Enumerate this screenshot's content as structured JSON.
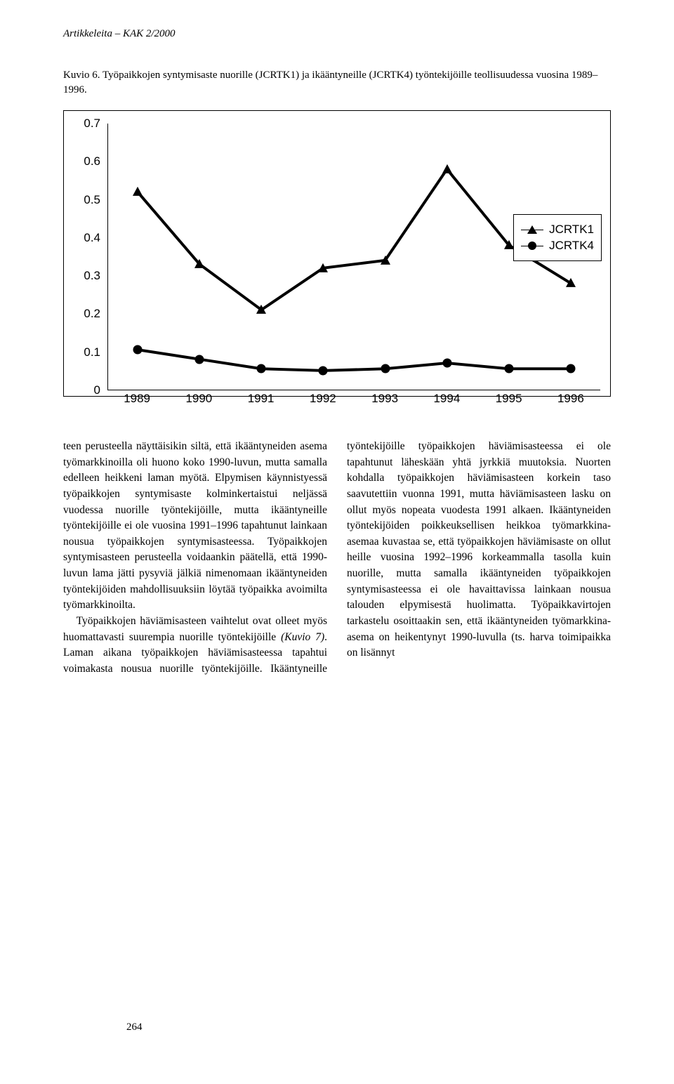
{
  "running_head": "Artikkeleita – KAK 2/2000",
  "caption": "Kuvio 6. Työpaikkojen syntymisaste nuorille (JCRTK1) ja ikääntyneille (JCRTK4) työntekijöille teollisuudessa vuosina 1989–1996.",
  "chart": {
    "type": "line",
    "background_color": "#ffffff",
    "axis_color": "#000000",
    "xlabels": [
      "1989",
      "1990",
      "1991",
      "1992",
      "1993",
      "1994",
      "1995",
      "1996"
    ],
    "ylim": [
      0,
      0.7
    ],
    "yticks": [
      "0",
      "0.1",
      "0.2",
      "0.3",
      "0.4",
      "0.5",
      "0.6",
      "0.7"
    ],
    "label_fontsize": 17,
    "series": [
      {
        "name": "JCRTK1",
        "marker": "triangle",
        "color": "#000000",
        "line_width": 1.5,
        "values": [
          0.52,
          0.33,
          0.21,
          0.32,
          0.34,
          0.58,
          0.38,
          0.28
        ]
      },
      {
        "name": "JCRTK4",
        "marker": "circle",
        "color": "#000000",
        "line_width": 1.5,
        "values": [
          0.105,
          0.08,
          0.055,
          0.05,
          0.055,
          0.07,
          0.055,
          0.055
        ]
      }
    ]
  },
  "col_a_p1": "teen perusteella näyttäisikin siltä, että ikääntyneiden asema työmarkkinoilla oli huono koko 1990-luvun, mutta samalla edelleen heikkeni laman myötä. Elpymisen käynnistyessä työpaikkojen syntymisaste kolminkertaistui neljässä vuodessa nuorille työntekijöille, mutta ikääntyneille työntekijöille ei ole vuosina 1991–1996 tapahtunut lainkaan nousua työpaikkojen syntymisasteessa. Työpaikkojen syntymisasteen perusteella voidaankin päätellä, että 1990-luvun lama jätti pysyviä jälkiä nimenomaan ikääntyneiden työntekijöiden mahdollisuuksiin löytää työpaikka avoimilta työmarkkinoilta.",
  "col_a_p2_pre": "Työpaikkojen häviämisasteen vaihtelut ovat olleet myös huomattavasti suurempia nuorille työntekijöille ",
  "col_a_p2_it": "(Kuvio 7)",
  "col_a_p2_post": ". Laman aikana työpaikkojen häviämisasteessa tapahtui voimakasta ",
  "col_b": "nousua nuorille työntekijöille. Ikääntyneille työntekijöille työpaikkojen häviämisasteessa ei ole tapahtunut läheskään yhtä jyrkkiä muutoksia. Nuorten kohdalla työpaikkojen häviämisasteen korkein taso saavutettiin vuonna 1991, mutta häviämisasteen lasku on ollut myös nopeata vuodesta 1991 alkaen. Ikääntyneiden työntekijöiden poikkeuksellisen heikkoa työmarkkina-asemaa kuvastaa se, että työpaikkojen häviämisaste on ollut heille vuosina 1992–1996 korkeammalla tasolla kuin nuorille, mutta samalla ikääntyneiden työpaikkojen syntymisasteessa ei ole havaittavissa lainkaan nousua talouden elpymisestä huolimatta. Työpaikkavirtojen tarkastelu osoittaakin sen, että ikääntyneiden työmarkkina-asema on heikentynyt 1990-luvulla (ts. harva toimipaikka on lisännyt",
  "page_number": "264"
}
